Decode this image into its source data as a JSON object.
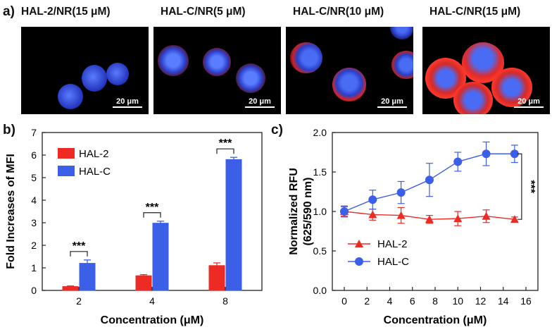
{
  "panel_a": {
    "letter": "a)",
    "images": [
      {
        "label": "HAL-2/NR(15 μM)",
        "scale": "20 μm"
      },
      {
        "label": "HAL-C/NR(5 μM)",
        "scale": "20 μm"
      },
      {
        "label": "HAL-C/NR(10 μM)",
        "scale": "20 μm"
      },
      {
        "label": "HAL-C/NR(15 μM)",
        "scale": "20 μm"
      }
    ]
  },
  "panel_b": {
    "letter": "b)"
  },
  "panel_c": {
    "letter": "c)"
  },
  "colors": {
    "hal2": "#ee2a24",
    "halc": "#3b5fe6"
  },
  "chart_data": [
    {
      "type": "bar",
      "xlabel": "Concentration (μM)",
      "ylabel": "Fold Increases of MFI",
      "categories": [
        "2",
        "4",
        "8"
      ],
      "ylim": [
        0,
        7
      ],
      "yticks": [
        0,
        1,
        2,
        3,
        4,
        5,
        6,
        7
      ],
      "legend": "top-left",
      "series": [
        {
          "name": "HAL-2",
          "values": [
            0.17,
            0.65,
            1.1
          ],
          "errors": [
            0.03,
            0.05,
            0.12
          ]
        },
        {
          "name": "HAL-C",
          "values": [
            1.2,
            2.98,
            5.8
          ],
          "errors": [
            0.15,
            0.09,
            0.1
          ]
        }
      ],
      "significance": [
        "***",
        "***",
        "***"
      ]
    },
    {
      "type": "line",
      "xlabel": "Concentration (μM)",
      "ylabel": "Normalized RFU\n(625/590 nm)",
      "ylabel_lines": [
        "Normalized RFU",
        "(625/590 nm)"
      ],
      "xlim": [
        0,
        16
      ],
      "ylim": [
        0.0,
        2.0
      ],
      "xticks": [
        0,
        2,
        4,
        6,
        8,
        10,
        12,
        14,
        16
      ],
      "yticks": [
        "0.0",
        "0.5",
        "1.0",
        "1.5",
        "2.0"
      ],
      "legend": "bottom-left",
      "series": [
        {
          "name": "HAL-2",
          "marker": "triangle",
          "x": [
            0,
            2.5,
            5,
            7.5,
            10,
            12.5,
            15
          ],
          "y": [
            1.0,
            0.96,
            0.95,
            0.9,
            0.91,
            0.94,
            0.9
          ],
          "errors": [
            0.06,
            0.07,
            0.1,
            0.05,
            0.09,
            0.08,
            0.03
          ]
        },
        {
          "name": "HAL-C",
          "marker": "circle",
          "x": [
            0,
            2.5,
            5,
            7.5,
            10,
            12.5,
            15
          ],
          "y": [
            1.0,
            1.15,
            1.24,
            1.4,
            1.63,
            1.73,
            1.73
          ],
          "errors": [
            0.07,
            0.12,
            0.14,
            0.21,
            0.12,
            0.15,
            0.11
          ]
        }
      ],
      "significance": "***"
    }
  ]
}
